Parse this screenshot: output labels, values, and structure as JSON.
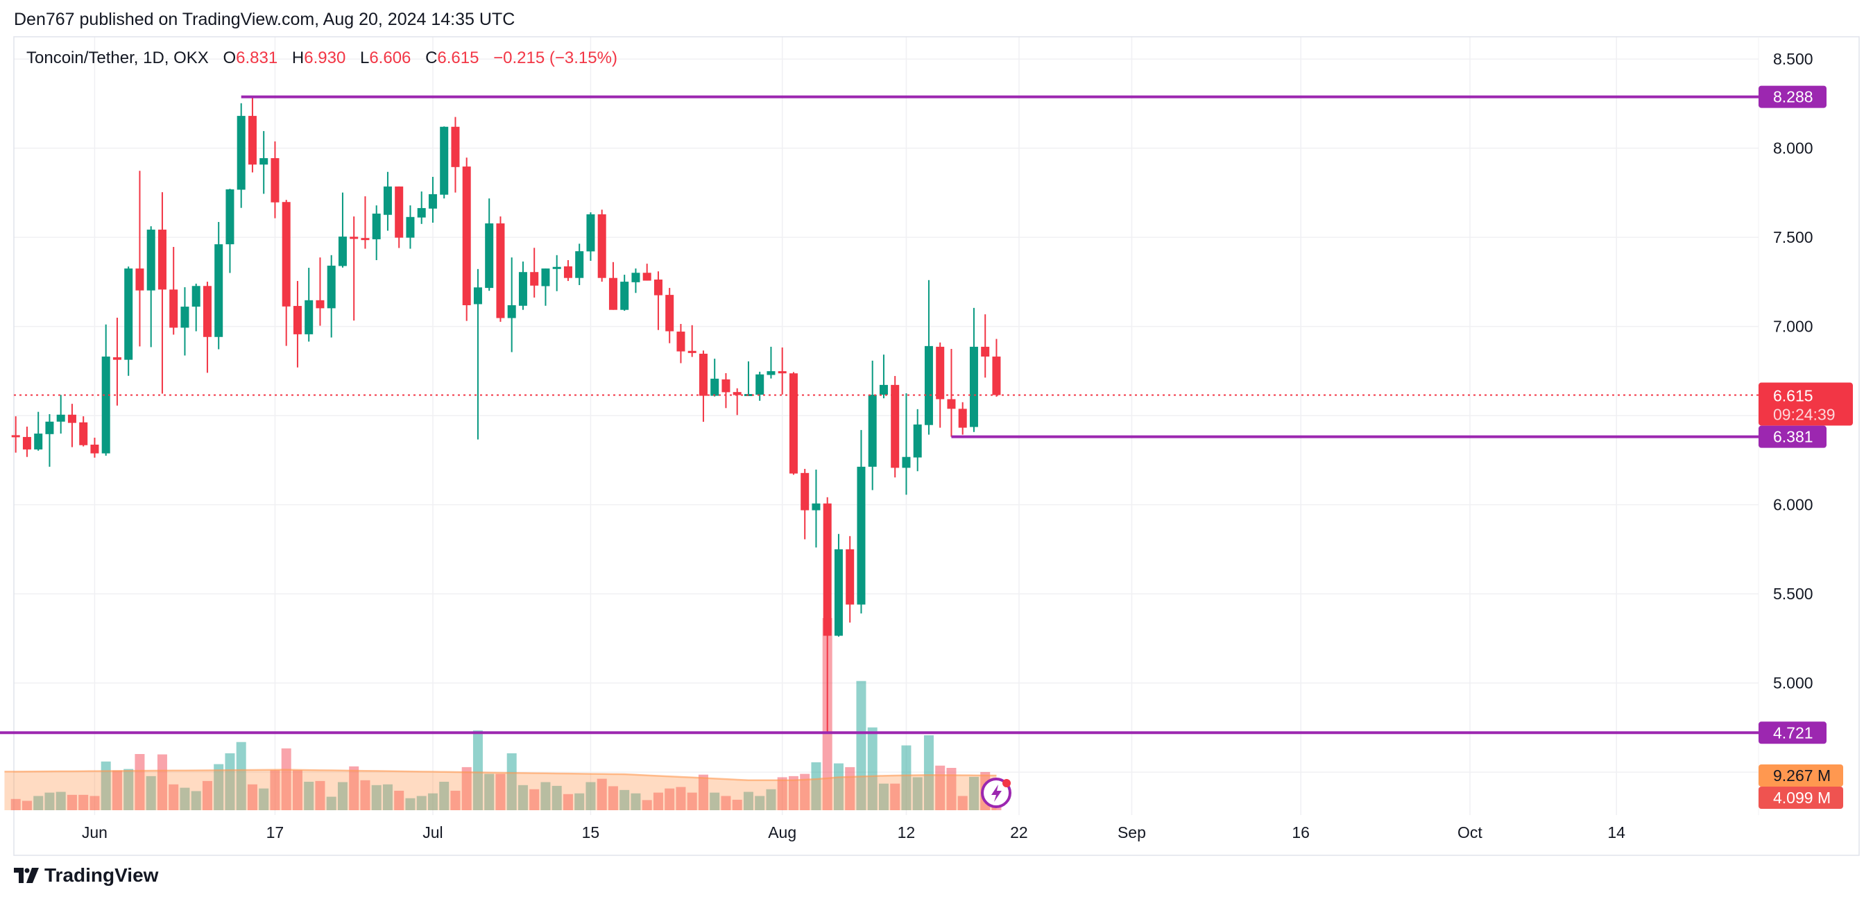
{
  "header": {
    "published": "Den767 published on TradingView.com, Aug 20, 2024 14:35 UTC"
  },
  "legend": {
    "symbol": "Toncoin/Tether, 1D, OKX",
    "o_label": "O",
    "o": "6.831",
    "h_label": "H",
    "h": "6.930",
    "l_label": "L",
    "l": "6.606",
    "c_label": "C",
    "c": "6.615",
    "change": "−0.215 (−3.15%)"
  },
  "footer": {
    "brand": "TradingView"
  },
  "colors": {
    "up": "#089981",
    "down": "#F23645",
    "vol_up": "rgba(38,166,154,0.5)",
    "vol_down": "rgba(242,54,69,0.45)",
    "vol_ma": "#FF9850",
    "level": "#9C27B0",
    "grid": "#F0F0F3"
  },
  "chart_data": {
    "type": "candlestick",
    "title": "Toncoin/Tether, 1D, OKX",
    "start_date": "2024-05-25",
    "ylim": [
      4.35,
      8.6
    ],
    "y_ticks": [
      "8.500",
      "8.000",
      "7.500",
      "7.000",
      "6.000",
      "5.500",
      "5.000"
    ],
    "x_ticks": [
      {
        "label": "Jun",
        "index": 7
      },
      {
        "label": "17",
        "index": 23
      },
      {
        "label": "Jul",
        "index": 37
      },
      {
        "label": "15",
        "index": 51
      },
      {
        "label": "Aug",
        "index": 68
      },
      {
        "label": "12",
        "index": 79
      },
      {
        "label": "22",
        "index": 89
      },
      {
        "label": "Sep",
        "index": 99
      },
      {
        "label": "16",
        "index": 114
      },
      {
        "label": "Oct",
        "index": 129
      },
      {
        "label": "14",
        "index": 142
      }
    ],
    "ohlc": [
      [
        6.39,
        6.496,
        6.292,
        6.385
      ],
      [
        6.38,
        6.438,
        6.268,
        6.31
      ],
      [
        6.31,
        6.521,
        6.303,
        6.399
      ],
      [
        6.396,
        6.508,
        6.213,
        6.466
      ],
      [
        6.466,
        6.616,
        6.399,
        6.505
      ],
      [
        6.505,
        6.566,
        6.323,
        6.459
      ],
      [
        6.462,
        6.496,
        6.327,
        6.334
      ],
      [
        6.337,
        6.376,
        6.264,
        6.288
      ],
      [
        6.288,
        7.011,
        6.275,
        6.831
      ],
      [
        6.827,
        7.049,
        6.556,
        6.813
      ],
      [
        6.813,
        7.336,
        6.723,
        7.325
      ],
      [
        7.325,
        7.873,
        6.888,
        7.202
      ],
      [
        7.202,
        7.562,
        6.884,
        7.543
      ],
      [
        7.543,
        7.753,
        6.623,
        7.207
      ],
      [
        7.207,
        7.446,
        6.954,
        6.993
      ],
      [
        6.993,
        7.22,
        6.837,
        7.111
      ],
      [
        7.111,
        7.24,
        6.973,
        7.227
      ],
      [
        7.227,
        7.251,
        6.74,
        6.941
      ],
      [
        6.941,
        7.586,
        6.872,
        7.461
      ],
      [
        7.461,
        7.772,
        7.3,
        7.769
      ],
      [
        7.767,
        8.252,
        7.665,
        8.181
      ],
      [
        8.181,
        8.288,
        7.864,
        7.908
      ],
      [
        7.908,
        8.096,
        7.744,
        7.944
      ],
      [
        7.944,
        8.038,
        7.607,
        7.696
      ],
      [
        7.698,
        7.71,
        6.891,
        7.112
      ],
      [
        7.115,
        7.255,
        6.77,
        6.956
      ],
      [
        6.956,
        7.329,
        6.915,
        7.147
      ],
      [
        7.147,
        7.387,
        7.004,
        7.102
      ],
      [
        7.102,
        7.4,
        6.938,
        7.341
      ],
      [
        7.339,
        7.751,
        7.33,
        7.504
      ],
      [
        7.503,
        7.617,
        7.033,
        7.491
      ],
      [
        7.496,
        7.73,
        7.436,
        7.489
      ],
      [
        7.489,
        7.679,
        7.372,
        7.633
      ],
      [
        7.626,
        7.867,
        7.537,
        7.785
      ],
      [
        7.785,
        7.785,
        7.44,
        7.498
      ],
      [
        7.498,
        7.679,
        7.436,
        7.614
      ],
      [
        7.611,
        7.757,
        7.575,
        7.664
      ],
      [
        7.661,
        7.839,
        7.582,
        7.742
      ],
      [
        7.739,
        8.122,
        7.718,
        8.12
      ],
      [
        8.12,
        8.175,
        7.751,
        7.894
      ],
      [
        7.897,
        7.947,
        7.031,
        7.119
      ],
      [
        7.125,
        7.322,
        6.366,
        7.219
      ],
      [
        7.216,
        7.718,
        7.2,
        7.578
      ],
      [
        7.578,
        7.617,
        7.026,
        7.047
      ],
      [
        7.047,
        7.387,
        6.856,
        7.119
      ],
      [
        7.116,
        7.364,
        7.093,
        7.305
      ],
      [
        7.305,
        7.441,
        7.162,
        7.229
      ],
      [
        7.226,
        7.325,
        7.116,
        7.325
      ],
      [
        7.325,
        7.4,
        7.198,
        7.334
      ],
      [
        7.337,
        7.372,
        7.255,
        7.272
      ],
      [
        7.272,
        7.464,
        7.232,
        7.422
      ],
      [
        7.421,
        7.64,
        7.368,
        7.629
      ],
      [
        7.629,
        7.655,
        7.251,
        7.272
      ],
      [
        7.272,
        7.361,
        7.093,
        7.093
      ],
      [
        7.093,
        7.29,
        7.088,
        7.251
      ],
      [
        7.248,
        7.325,
        7.188,
        7.301
      ],
      [
        7.301,
        7.352,
        7.257,
        7.257
      ],
      [
        7.263,
        7.309,
        6.98,
        7.175
      ],
      [
        7.177,
        7.216,
        6.906,
        6.973
      ],
      [
        6.971,
        7.014,
        6.794,
        6.86
      ],
      [
        6.863,
        7.007,
        6.829,
        6.851
      ],
      [
        6.847,
        6.865,
        6.465,
        6.611
      ],
      [
        6.611,
        6.819,
        6.607,
        6.707
      ],
      [
        6.703,
        6.738,
        6.542,
        6.631
      ],
      [
        6.632,
        6.653,
        6.503,
        6.615
      ],
      [
        6.617,
        6.804,
        6.612,
        6.621
      ],
      [
        6.617,
        6.746,
        6.583,
        6.731
      ],
      [
        6.728,
        6.886,
        6.708,
        6.749
      ],
      [
        6.749,
        6.882,
        6.618,
        6.737
      ],
      [
        6.737,
        6.744,
        6.168,
        6.175
      ],
      [
        6.178,
        6.201,
        5.806,
        5.969
      ],
      [
        5.969,
        6.197,
        5.76,
        6.007
      ],
      [
        6.007,
        6.042,
        4.721,
        5.265
      ],
      [
        5.265,
        5.836,
        5.26,
        5.75
      ],
      [
        5.75,
        5.824,
        5.339,
        5.44
      ],
      [
        5.44,
        6.419,
        5.39,
        6.213
      ],
      [
        6.213,
        6.808,
        6.082,
        6.617
      ],
      [
        6.617,
        6.842,
        6.597,
        6.672
      ],
      [
        6.672,
        6.722,
        6.153,
        6.207
      ],
      [
        6.207,
        6.625,
        6.056,
        6.268
      ],
      [
        6.265,
        6.536,
        6.188,
        6.45
      ],
      [
        6.447,
        7.26,
        6.393,
        6.89
      ],
      [
        6.886,
        6.91,
        6.432,
        6.592
      ],
      [
        6.592,
        6.874,
        6.381,
        6.538
      ],
      [
        6.538,
        6.575,
        6.393,
        6.432
      ],
      [
        6.436,
        7.104,
        6.408,
        6.886
      ],
      [
        6.886,
        7.068,
        6.713,
        6.831
      ],
      [
        6.831,
        6.93,
        6.606,
        6.615
      ]
    ],
    "volume_millions": [
      3.0,
      2.5,
      3.8,
      4.7,
      4.9,
      4.1,
      4.1,
      3.8,
      13.0,
      10.6,
      11.0,
      15.0,
      9.1,
      14.9,
      6.9,
      6.0,
      5.1,
      7.8,
      12.3,
      15.2,
      18.2,
      6.9,
      5.8,
      10.7,
      16.5,
      10.7,
      7.6,
      7.8,
      3.6,
      7.5,
      11.7,
      8.0,
      6.7,
      6.9,
      5.2,
      3.2,
      3.8,
      4.5,
      7.6,
      5.2,
      11.5,
      21.3,
      9.7,
      9.7,
      15.2,
      6.7,
      5.6,
      7.5,
      6.5,
      4.3,
      4.5,
      7.5,
      8.4,
      6.4,
      5.4,
      4.5,
      2.7,
      4.7,
      5.8,
      6.2,
      4.7,
      9.5,
      4.7,
      3.8,
      2.8,
      4.9,
      3.8,
      5.6,
      8.8,
      9.1,
      9.7,
      12.8,
      51.3,
      12.5,
      11.5,
      34.5,
      22.1,
      7.1,
      7.1,
      17.3,
      8.8,
      20.0,
      11.9,
      11.3,
      3.8,
      8.9,
      10.2,
      4.099
    ],
    "volume_ma_points": [
      [
        0,
        10.3
      ],
      [
        24,
        10.8
      ],
      [
        34,
        10.4
      ],
      [
        43,
        10.0
      ],
      [
        54,
        9.6
      ],
      [
        61,
        8.6
      ],
      [
        65,
        8.0
      ],
      [
        69,
        8.0
      ],
      [
        71,
        8.3
      ],
      [
        73,
        8.8
      ],
      [
        77,
        9.2
      ],
      [
        81,
        9.4
      ],
      [
        87,
        9.267
      ]
    ],
    "hlines": [
      {
        "value": 8.288,
        "label": "8.288",
        "from_index": 20
      },
      {
        "value": 6.381,
        "label": "6.381",
        "from_index": 83
      },
      {
        "value": 4.721,
        "label": "4.721",
        "from_index": -2
      }
    ],
    "last_price": {
      "value": 6.615,
      "label": "6.615",
      "countdown": "09:24:39"
    },
    "volume_labels": {
      "ma": "9.267 M",
      "last": "4.099 M"
    }
  }
}
